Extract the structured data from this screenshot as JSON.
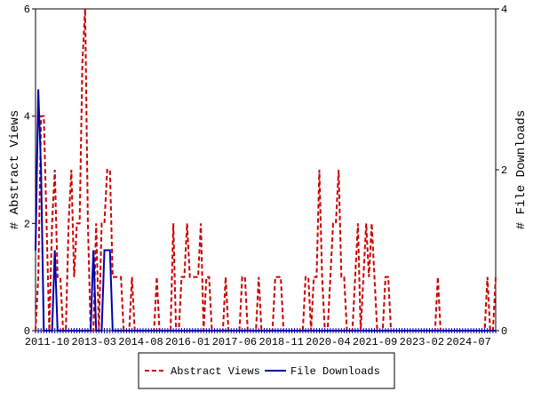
{
  "chart_data": {
    "type": "line",
    "categories": [
      "2011-10",
      null,
      null,
      null,
      null,
      null,
      null,
      null,
      null,
      null,
      null,
      null,
      null,
      null,
      null,
      null,
      null,
      "2013-03",
      null,
      null,
      null,
      null,
      null,
      null,
      null,
      null,
      null,
      null,
      null,
      null,
      null,
      null,
      null,
      null,
      "2014-08",
      null,
      null,
      null,
      null,
      null,
      null,
      null,
      null,
      null,
      null,
      null,
      null,
      null,
      null,
      null,
      null,
      "2016-01",
      null,
      null,
      null,
      null,
      null,
      null,
      null,
      null,
      null,
      null,
      null,
      null,
      null,
      null,
      null,
      null,
      "2017-06",
      null,
      null,
      null,
      null,
      null,
      null,
      null,
      null,
      null,
      null,
      null,
      null,
      null,
      null,
      null,
      null,
      "2018-11",
      null,
      null,
      null,
      null,
      null,
      null,
      null,
      null,
      null,
      null,
      null,
      null,
      null,
      null,
      null,
      null,
      "2020-04",
      null,
      null,
      null,
      null,
      null,
      null,
      null,
      null,
      null,
      null,
      null,
      null,
      null,
      null,
      null,
      null,
      "2021-09",
      null,
      null,
      null,
      null,
      null,
      null,
      null,
      null,
      null,
      null,
      null,
      null,
      null,
      null,
      null,
      null,
      "2023-02",
      null,
      null,
      null,
      null,
      null,
      null,
      null,
      null,
      null,
      null,
      null,
      null,
      null,
      null,
      null,
      null,
      "2024-07",
      null,
      null,
      null,
      null,
      null,
      null,
      null,
      null,
      null,
      null,
      null,
      null,
      null,
      null
    ],
    "series": [
      {
        "name": "Abstract Views",
        "color": "#cc0000",
        "dash": true,
        "axis": "y",
        "values": [
          0,
          1,
          4,
          4,
          2,
          0,
          2,
          3,
          1,
          1,
          0,
          0,
          2,
          3,
          1,
          2,
          2,
          5,
          6,
          2,
          0,
          0,
          2,
          0,
          2,
          2,
          3,
          3,
          1,
          1,
          1,
          1,
          0,
          0,
          0,
          1,
          0,
          0,
          0,
          0,
          0,
          0,
          0,
          0,
          1,
          0,
          0,
          0,
          0,
          0,
          2,
          0,
          0,
          1,
          1,
          2,
          1,
          1,
          1,
          1,
          2,
          0,
          1,
          1,
          0,
          0,
          0,
          0,
          0,
          1,
          0,
          0,
          0,
          0,
          0,
          1,
          1,
          0,
          0,
          0,
          0,
          1,
          0,
          0,
          0,
          0,
          0,
          1,
          1,
          1,
          0,
          0,
          0,
          0,
          0,
          0,
          0,
          0,
          1,
          1,
          0,
          1,
          1,
          3,
          1,
          0,
          0,
          1,
          2,
          2,
          3,
          1,
          1,
          0,
          0,
          0,
          1,
          2,
          0,
          1,
          2,
          1,
          2,
          1,
          0,
          0,
          0,
          1,
          1,
          0,
          0,
          0,
          0,
          0,
          0,
          0,
          0,
          0,
          0,
          0,
          0,
          0,
          0,
          0,
          0,
          0,
          1,
          0,
          0,
          0,
          0,
          0,
          0,
          0,
          0,
          0,
          0,
          0,
          0,
          0,
          0,
          0,
          0,
          0,
          1,
          0,
          0,
          1
        ]
      },
      {
        "name": "File Downloads",
        "color": "#0000aa",
        "dash": false,
        "axis": "y2",
        "values": [
          1,
          3,
          2,
          0,
          0,
          0,
          0,
          1,
          0,
          0,
          0,
          0,
          0,
          0,
          0,
          0,
          0,
          0,
          0,
          0,
          0,
          1,
          0,
          0,
          0,
          1,
          1,
          1,
          0,
          0,
          0,
          0,
          0,
          0,
          0,
          0,
          0,
          0,
          0,
          0,
          0,
          0,
          0,
          0,
          0,
          0,
          0,
          0,
          0,
          0,
          0,
          0,
          0,
          0,
          0,
          0,
          0,
          0,
          0,
          0,
          0,
          0,
          0,
          0,
          0,
          0,
          0,
          0,
          0,
          0,
          0,
          0,
          0,
          0,
          0,
          0,
          0,
          0,
          0,
          0,
          0,
          0,
          0,
          0,
          0,
          0,
          0,
          0,
          0,
          0,
          0,
          0,
          0,
          0,
          0,
          0,
          0,
          0,
          0,
          0,
          0,
          0,
          0,
          0,
          0,
          0,
          0,
          0,
          0,
          0,
          0,
          0,
          0,
          0,
          0,
          0,
          0,
          0,
          0,
          0,
          0,
          0,
          0,
          0,
          0,
          0,
          0,
          0,
          0,
          0,
          0,
          0,
          0,
          0,
          0,
          0,
          0,
          0,
          0,
          0,
          0,
          0,
          0,
          0,
          0,
          0,
          0,
          0,
          0,
          0,
          0,
          0,
          0,
          0,
          0,
          0,
          0,
          0,
          0,
          0,
          0,
          0,
          0,
          0,
          0,
          0,
          0,
          0
        ]
      }
    ],
    "y_label": "# Abstract Views",
    "y2_label": "# File Downloads",
    "ylim": [
      0,
      6
    ],
    "yticks": [
      0,
      2,
      4,
      6
    ],
    "y2lim": [
      0,
      4
    ],
    "y2ticks": [
      0,
      2,
      4
    ],
    "legend": "bottom"
  }
}
